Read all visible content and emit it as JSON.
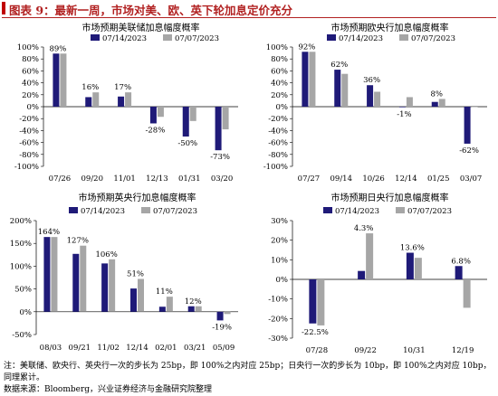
{
  "page": {
    "title": "图表 9：最新一周，市场对美、欧、英下轮加息定价充分",
    "note_line1": "注：美联储、欧央行、英央行一次的步长为 25bp，即 100%之内对应 25bp；日央行一次的步长为 10bp，即 100%之内对应 10bp，同理累计。",
    "note_line2": "数据来源：Bloomberg，兴业证券经济与金融研究院整理"
  },
  "colors": {
    "series1": "#1f1a78",
    "series2": "#a6a6a6",
    "title_red": "#b22222"
  },
  "chart_data": [
    {
      "type": "bar",
      "title": "市场预期美联储加息幅度概率",
      "categories": [
        "07/26",
        "09/20",
        "11/01",
        "12/13",
        "01/31",
        "03/20"
      ],
      "series": [
        {
          "name": "07/14/2023",
          "values": [
            89,
            16,
            17,
            -28,
            -50,
            -73
          ]
        },
        {
          "name": "07/07/2023",
          "values": [
            89,
            24,
            24,
            -17,
            -24,
            -38
          ]
        }
      ],
      "labels": [
        "89%",
        "16%",
        "17%",
        "-28%",
        "-50%",
        "-73%"
      ],
      "ylim": [
        -100,
        100
      ],
      "yticks": [
        -100,
        -80,
        -60,
        -40,
        -20,
        0,
        20,
        40,
        60,
        80,
        100
      ],
      "yticklabels": [
        "-100%",
        "-80%",
        "-60%",
        "-40%",
        "-20%",
        "0%",
        "20%",
        "40%",
        "60%",
        "80%",
        "100%"
      ]
    },
    {
      "type": "bar",
      "title": "市场预期欧央行加息幅度概率",
      "categories": [
        "07/27",
        "09/14",
        "10/26",
        "12/14",
        "01/25",
        "03/07"
      ],
      "series": [
        {
          "name": "07/14/2023",
          "values": [
            92,
            62,
            36,
            -1,
            8,
            -62
          ]
        },
        {
          "name": "07/07/2023",
          "values": [
            92,
            55,
            25,
            16,
            13,
            0
          ]
        }
      ],
      "labels": [
        "92%",
        "62%",
        "36%",
        "-1%",
        "8%",
        "-62%"
      ],
      "ylim": [
        -100,
        100
      ],
      "yticks": [
        -100,
        -80,
        -60,
        -40,
        -20,
        0,
        20,
        40,
        60,
        80,
        100
      ],
      "yticklabels": [
        "-100%",
        "-80%",
        "-60%",
        "-40%",
        "-20%",
        "0%",
        "20%",
        "40%",
        "60%",
        "80%",
        "100%"
      ]
    },
    {
      "type": "bar",
      "title": "市场预期英央行加息幅度概率",
      "categories": [
        "08/03",
        "09/21",
        "11/02",
        "12/14",
        "02/01",
        "03/21",
        "05/09"
      ],
      "series": [
        {
          "name": "07/14/2023",
          "values": [
            164,
            127,
            106,
            51,
            11,
            12,
            -19
          ]
        },
        {
          "name": "07/07/2023",
          "values": [
            164,
            145,
            115,
            72,
            33,
            12,
            -5
          ]
        }
      ],
      "labels": [
        "164%",
        "127%",
        "106%",
        "51%",
        "11%",
        "12%",
        "-19%"
      ],
      "ylim": [
        -50,
        200
      ],
      "yticks": [
        -50,
        0,
        50,
        100,
        150,
        200
      ],
      "yticklabels": [
        "-50%",
        "0%",
        "50%",
        "100%",
        "150%",
        "200%"
      ]
    },
    {
      "type": "bar",
      "title": "市场预期日央行加息幅度概率",
      "categories": [
        "07/28",
        "09/22",
        "10/31",
        "12/19"
      ],
      "series": [
        {
          "name": "07/14/2023",
          "values": [
            -22.5,
            4.3,
            13.6,
            6.8
          ]
        },
        {
          "name": "07/07/2023",
          "values": [
            -23.5,
            23.5,
            11,
            -14.5
          ]
        }
      ],
      "labels": [
        "-22.5%",
        "4.3%",
        "13.6%",
        "6.8%"
      ],
      "ylim": [
        -30,
        30
      ],
      "yticks": [
        -30,
        -20,
        -10,
        0,
        10,
        20,
        30
      ],
      "yticklabels": [
        "-30%",
        "-20%",
        "-10%",
        "0%",
        "10%",
        "20%",
        "30%"
      ]
    }
  ]
}
